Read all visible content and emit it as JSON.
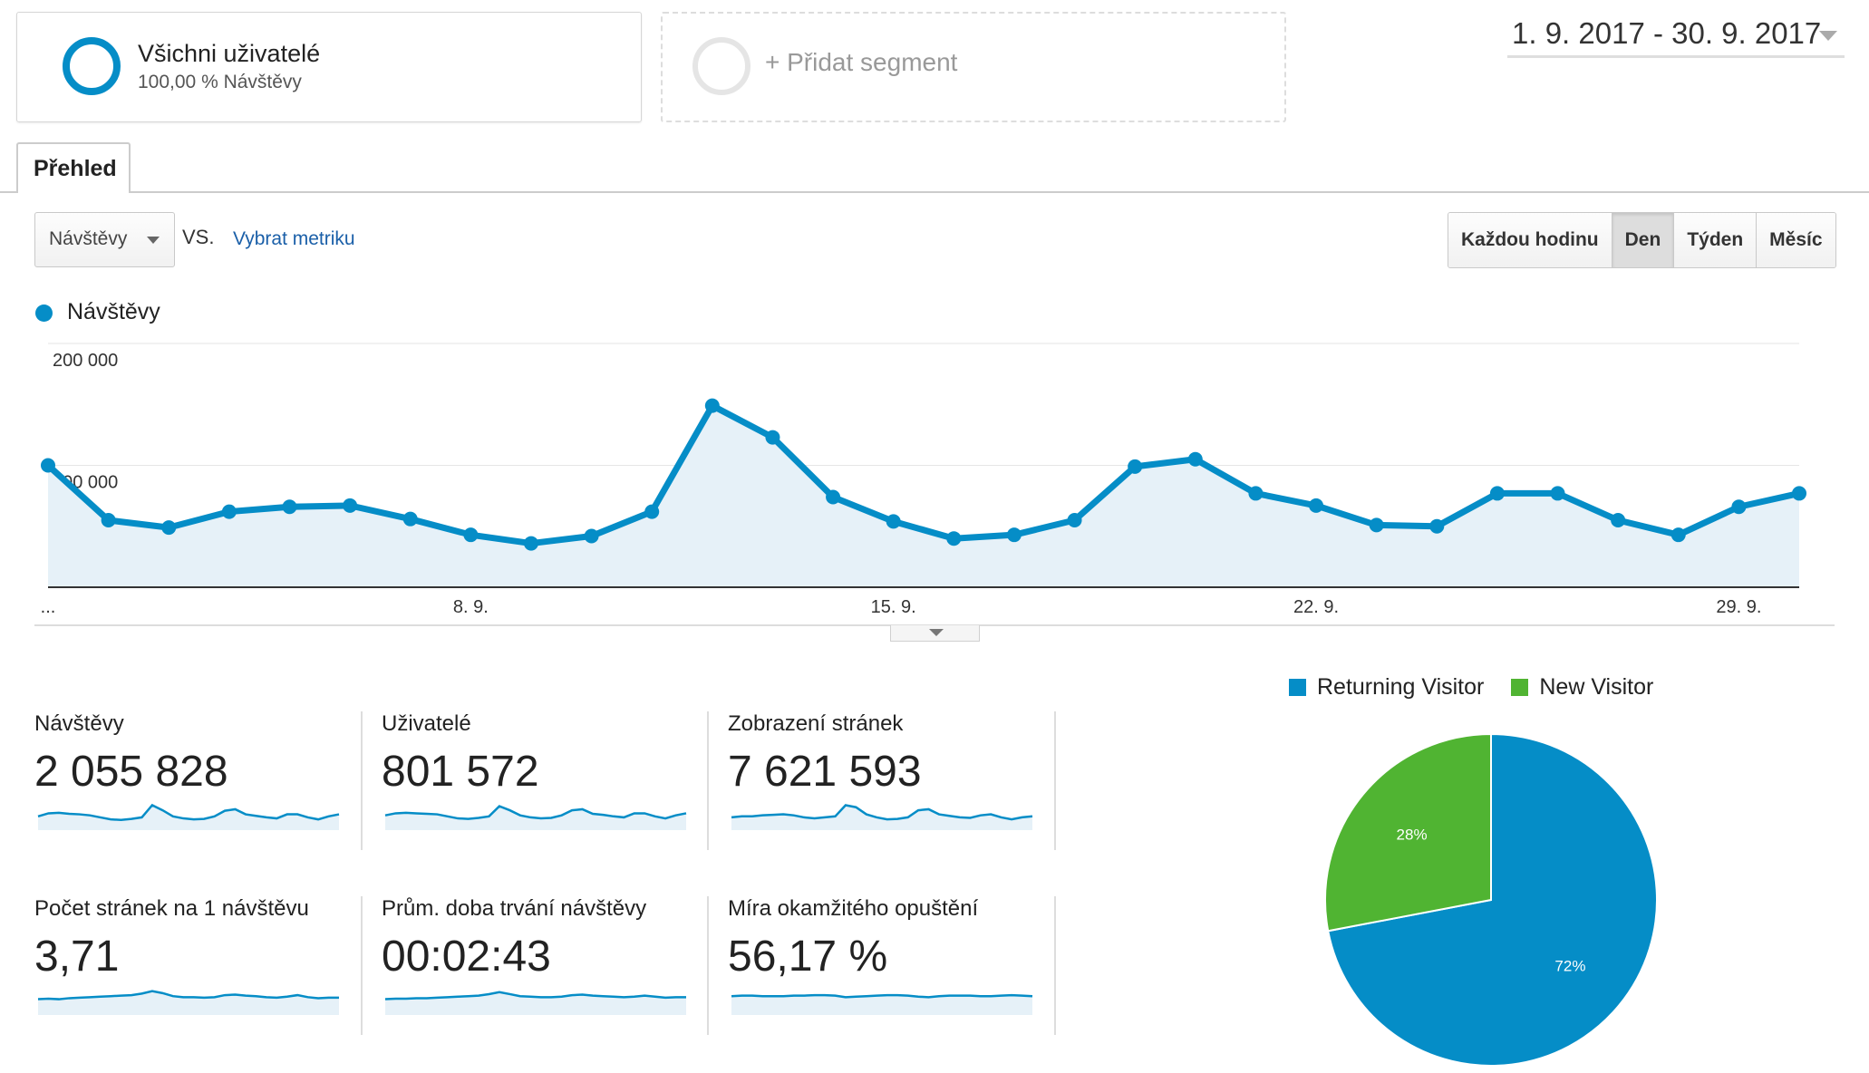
{
  "segments": {
    "all_users": {
      "title": "Všichni uživatelé",
      "subtitle": "100,00 % Návštěvy"
    },
    "add_segment": {
      "label": "+ Přidat segment"
    }
  },
  "date_range": "1. 9. 2017 - 30. 9. 2017",
  "tabs": [
    {
      "label": "Přehled",
      "active": true
    }
  ],
  "metric_selector": {
    "selected": "Návštěvy",
    "vs_label": "VS.",
    "choose_metric": "Vybrat metriku"
  },
  "granularity": {
    "options": [
      "Každou hodinu",
      "Den",
      "Týden",
      "Měsíc"
    ],
    "selected": "Den"
  },
  "colors": {
    "accent": "#058dc7",
    "new_visitor": "#50b432",
    "area_fill": "#e6f1f8"
  },
  "chart_data": [
    {
      "type": "line",
      "series": [
        {
          "name": "Návštěvy",
          "values": [
            100000,
            55000,
            49000,
            62000,
            66000,
            67000,
            56000,
            43000,
            36000,
            42000,
            62000,
            149000,
            123000,
            74000,
            54000,
            40000,
            43000,
            55000,
            99000,
            105000,
            77000,
            67000,
            51000,
            50000,
            77000,
            77000,
            55000,
            43000,
            66000,
            77000
          ]
        }
      ],
      "x": [
        "1. 9.",
        "2. 9.",
        "3. 9.",
        "4. 9.",
        "5. 9.",
        "6. 9.",
        "7. 9.",
        "8. 9.",
        "9. 9.",
        "10. 9.",
        "11. 9.",
        "12. 9.",
        "13. 9.",
        "14. 9.",
        "15. 9.",
        "16. 9.",
        "17. 9.",
        "18. 9.",
        "19. 9.",
        "20. 9.",
        "21. 9.",
        "22. 9.",
        "23. 9.",
        "24. 9.",
        "25. 9.",
        "26. 9.",
        "27. 9.",
        "28. 9.",
        "29. 9.",
        "30. 9."
      ],
      "x_tick_labels": [
        "...",
        "8. 9.",
        "15. 9.",
        "22. 9.",
        "29. 9."
      ],
      "y_tick_labels": [
        "200 000",
        "100 000"
      ],
      "ylim": [
        0,
        200000
      ],
      "grid": true,
      "legend": "top-left"
    },
    {
      "type": "pie",
      "categories": [
        "Returning Visitor",
        "New Visitor"
      ],
      "values": [
        72,
        28
      ],
      "labels": [
        "72%",
        "28%"
      ],
      "legend": "top"
    }
  ],
  "scorecards": [
    {
      "label": "Návštěvy",
      "value": "2 055 828",
      "spark": [
        40,
        46,
        47,
        45,
        44,
        42,
        38,
        34,
        33,
        35,
        38,
        62,
        52,
        40,
        36,
        34,
        35,
        40,
        51,
        54,
        44,
        41,
        38,
        36,
        44,
        44,
        38,
        34,
        40,
        44
      ]
    },
    {
      "label": "Uživatelé",
      "value": "801 572",
      "spark": [
        42,
        46,
        47,
        46,
        45,
        44,
        40,
        36,
        35,
        37,
        40,
        60,
        52,
        42,
        38,
        36,
        37,
        42,
        52,
        54,
        45,
        43,
        40,
        38,
        46,
        46,
        40,
        36,
        42,
        46
      ]
    },
    {
      "label": "Zobrazení stránek",
      "value": "7 621 593",
      "spark": [
        38,
        40,
        40,
        42,
        43,
        44,
        42,
        38,
        36,
        38,
        40,
        62,
        58,
        44,
        38,
        34,
        35,
        38,
        52,
        54,
        44,
        41,
        38,
        37,
        42,
        44,
        38,
        34,
        38,
        40
      ]
    },
    {
      "label": "Počet stránek na 1 návštěvu",
      "value": "3,71",
      "spark": [
        44,
        45,
        44,
        46,
        47,
        48,
        49,
        50,
        51,
        52,
        55,
        60,
        56,
        50,
        48,
        48,
        47,
        48,
        52,
        53,
        51,
        50,
        48,
        47,
        49,
        52,
        48,
        46,
        47,
        47
      ]
    },
    {
      "label": "Prům. doba trvání návštěvy",
      "value": "00:02:43",
      "spark": [
        44,
        45,
        45,
        46,
        46,
        47,
        48,
        49,
        50,
        51,
        54,
        58,
        54,
        50,
        49,
        48,
        48,
        49,
        52,
        53,
        51,
        50,
        49,
        48,
        49,
        51,
        49,
        47,
        48,
        48
      ]
    },
    {
      "label": "Míra okamžitého opuštění",
      "value": "56,17 %",
      "spark": [
        50,
        51,
        51,
        50,
        50,
        50,
        51,
        51,
        52,
        52,
        51,
        48,
        49,
        50,
        51,
        52,
        52,
        51,
        49,
        48,
        50,
        51,
        51,
        51,
        50,
        50,
        51,
        52,
        51,
        50
      ]
    }
  ]
}
